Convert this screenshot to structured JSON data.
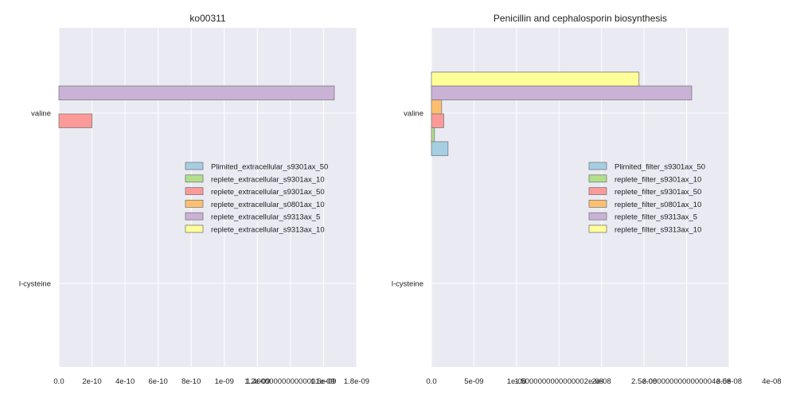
{
  "chart_data": [
    {
      "type": "bar",
      "orientation": "horizontal",
      "title": "ko00311",
      "categories": [
        "valine",
        "l-cysteine"
      ],
      "xlim": [
        0,
        1.8e-09
      ],
      "xticks": [
        0,
        2e-10,
        4e-10,
        6e-10,
        8e-10,
        1e-09,
        1.2e-09,
        1.4e-09,
        1.6e-09,
        1.8e-09
      ],
      "xtick_labels": [
        "0.0",
        "2e-10",
        "4e-10",
        "6e-10",
        "8e-10",
        "1e-09",
        "1.2e-09",
        "1.4000000000000001e-09",
        "1.6e-09",
        "1.8e-09"
      ],
      "grid": true,
      "legend_position": "center-right",
      "series": [
        {
          "name": "Plimited_extracellular_s9301ax_50",
          "color": "#a6cee3",
          "values": [
            0,
            0
          ]
        },
        {
          "name": "replete_extracellular_s9301ax_10",
          "color": "#b2df8a",
          "values": [
            0,
            0
          ]
        },
        {
          "name": "replete_extracellular_s9301ax_50",
          "color": "#fb9a99",
          "values": [
            2e-10,
            0
          ]
        },
        {
          "name": "replete_extracellular_s0801ax_10",
          "color": "#fdbf6f",
          "values": [
            0,
            0
          ]
        },
        {
          "name": "replete_extracellular_s9313ax_5",
          "color": "#cab2d6",
          "values": [
            1.665e-09,
            0
          ]
        },
        {
          "name": "replete_extracellular_s9313ax_10",
          "color": "#ffff99",
          "values": [
            0,
            0
          ]
        }
      ]
    },
    {
      "type": "bar",
      "orientation": "horizontal",
      "title": "Penicillin and cephalosporin biosynthesis",
      "categories": [
        "valine",
        "l-cysteine"
      ],
      "xlim": [
        0,
        3.5e-08
      ],
      "xticks": [
        0,
        5e-09,
        1e-08,
        1.5e-08,
        2e-08,
        2.5e-08,
        3e-08,
        3.5e-08,
        4e-08
      ],
      "xtick_labels": [
        "0.0",
        "5e-09",
        "1e-08",
        "1.5000000000000002e-08",
        "2e-08",
        "2.5e-08",
        "3.0000000000000004e-08",
        "3.5e-08",
        "4e-08"
      ],
      "grid": true,
      "legend_position": "center-right",
      "series": [
        {
          "name": "Plimited_filter_s9301ax_50",
          "color": "#a6cee3",
          "values": [
            1.95e-09,
            0
          ]
        },
        {
          "name": "replete_filter_s9301ax_10",
          "color": "#b2df8a",
          "values": [
            3.5e-10,
            0
          ]
        },
        {
          "name": "replete_filter_s9301ax_50",
          "color": "#fb9a99",
          "values": [
            1.45e-09,
            0
          ]
        },
        {
          "name": "replete_filter_s0801ax_10",
          "color": "#fdbf6f",
          "values": [
            1.2e-09,
            0
          ]
        },
        {
          "name": "replete_filter_s9313ax_5",
          "color": "#cab2d6",
          "values": [
            3.06e-08,
            0
          ]
        },
        {
          "name": "replete_filter_s9313ax_10",
          "color": "#ffff99",
          "values": [
            2.44e-08,
            0
          ]
        }
      ]
    }
  ]
}
